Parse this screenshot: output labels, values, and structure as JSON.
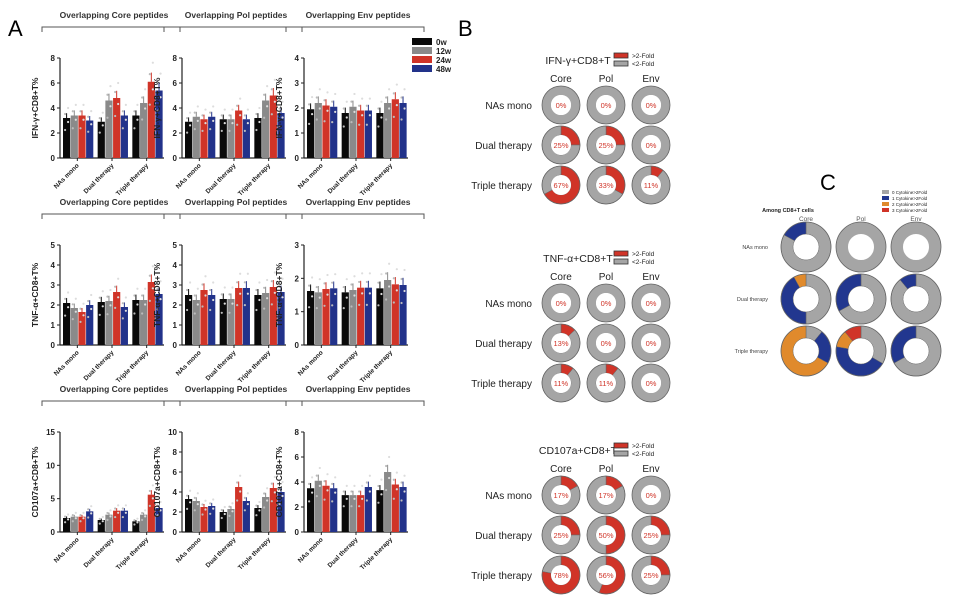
{
  "panel_labels": {
    "A": "A",
    "B": "B",
    "C": "C"
  },
  "colors": {
    "w0": "#0a0a0a",
    "w12": "#8a8a8a",
    "w24": "#d03428",
    "w48": "#22328a",
    "gt2": "#d03428",
    "lt2": "#a5a5a5",
    "c0": "#a5a5a5",
    "c1": "#22378f",
    "c2": "#e08a2c",
    "c3": "#d03428"
  },
  "legend_A": [
    {
      "label": "0w",
      "color": "#0a0a0a"
    },
    {
      "label": "12w",
      "color": "#8a8a8a"
    },
    {
      "label": "24w",
      "color": "#d03428"
    },
    {
      "label": "48w",
      "color": "#22328a"
    }
  ],
  "chart_data": [
    {
      "type": "bar",
      "panel": "A",
      "title": "Overlapping Core peptides",
      "ylabel": "IFN-γ+CD8+T%",
      "ylim": [
        0,
        8
      ],
      "yticks": [
        0,
        2,
        4,
        6,
        8
      ],
      "categories": [
        "NAs mono",
        "Dual therapy",
        "Triple therapy"
      ],
      "series": [
        {
          "name": "0w",
          "values": [
            3.2,
            2.9,
            3.4
          ]
        },
        {
          "name": "12w",
          "values": [
            3.4,
            4.6,
            4.4
          ]
        },
        {
          "name": "24w",
          "values": [
            3.4,
            4.8,
            6.1
          ]
        },
        {
          "name": "48w",
          "values": [
            3.0,
            3.4,
            5.4
          ]
        }
      ]
    },
    {
      "type": "bar",
      "panel": "A",
      "title": "Overlapping Pol peptides",
      "ylabel": "IFN-γ+CD8+T%",
      "ylim": [
        0,
        8
      ],
      "yticks": [
        0,
        2,
        4,
        6,
        8
      ],
      "categories": [
        "NAs mono",
        "Dual therapy",
        "Triple therapy"
      ],
      "series": [
        {
          "name": "0w",
          "values": [
            2.9,
            3.1,
            3.2
          ]
        },
        {
          "name": "12w",
          "values": [
            3.3,
            3.1,
            4.6
          ]
        },
        {
          "name": "24w",
          "values": [
            3.1,
            3.8,
            5.0
          ]
        },
        {
          "name": "48w",
          "values": [
            3.3,
            3.1,
            3.6
          ]
        }
      ]
    },
    {
      "type": "bar",
      "panel": "A",
      "title": "Overlapping Env peptides",
      "ylabel": "IFN-γ+CD8+T%",
      "ylim": [
        0,
        4
      ],
      "yticks": [
        0,
        1,
        2,
        3,
        4
      ],
      "categories": [
        "NAs mono",
        "Dual therapy",
        "Triple therapy"
      ],
      "series": [
        {
          "name": "0w",
          "values": [
            1.95,
            1.8,
            1.8
          ]
        },
        {
          "name": "12w",
          "values": [
            2.2,
            2.05,
            2.2
          ]
        },
        {
          "name": "24w",
          "values": [
            2.1,
            1.9,
            2.35
          ]
        },
        {
          "name": "48w",
          "values": [
            2.05,
            1.9,
            2.2
          ]
        }
      ]
    },
    {
      "type": "bar",
      "panel": "A",
      "title": "Overlapping Core peptides",
      "ylabel": "TNF-α+CD8+T%",
      "ylim": [
        0,
        5
      ],
      "yticks": [
        0,
        1,
        2,
        3,
        4,
        5
      ],
      "categories": [
        "NAs mono",
        "Dual therapy",
        "Triple therapy"
      ],
      "series": [
        {
          "name": "0w",
          "values": [
            2.1,
            2.15,
            2.25
          ]
        },
        {
          "name": "12w",
          "values": [
            1.85,
            2.2,
            2.25
          ]
        },
        {
          "name": "24w",
          "values": [
            1.65,
            2.65,
            3.15
          ]
        },
        {
          "name": "48w",
          "values": [
            2.0,
            1.9,
            2.55
          ]
        }
      ]
    },
    {
      "type": "bar",
      "panel": "A",
      "title": "Overlapping Pol peptides",
      "ylabel": "TNF-α+CD8+T%",
      "ylim": [
        0,
        5
      ],
      "yticks": [
        0,
        1,
        2,
        3,
        4,
        5
      ],
      "categories": [
        "NAs mono",
        "Dual therapy",
        "Triple therapy"
      ],
      "series": [
        {
          "name": "0w",
          "values": [
            2.5,
            2.3,
            2.5
          ]
        },
        {
          "name": "12w",
          "values": [
            2.25,
            2.3,
            2.6
          ]
        },
        {
          "name": "24w",
          "values": [
            2.75,
            2.85,
            2.9
          ]
        },
        {
          "name": "48w",
          "values": [
            2.5,
            2.85,
            2.65
          ]
        }
      ]
    },
    {
      "type": "bar",
      "panel": "A",
      "title": "Overlapping Env peptides",
      "ylabel": "TNF-α+CD8+T%",
      "ylim": [
        0,
        3
      ],
      "yticks": [
        0,
        1,
        2,
        3
      ],
      "categories": [
        "NAs mono",
        "Dual therapy",
        "Triple therapy"
      ],
      "series": [
        {
          "name": "0w",
          "values": [
            1.62,
            1.58,
            1.7
          ]
        },
        {
          "name": "12w",
          "values": [
            1.58,
            1.65,
            1.95
          ]
        },
        {
          "name": "24w",
          "values": [
            1.68,
            1.72,
            1.82
          ]
        },
        {
          "name": "48w",
          "values": [
            1.7,
            1.72,
            1.8
          ]
        }
      ]
    },
    {
      "type": "bar",
      "panel": "A",
      "title": "Overlapping Core peptides",
      "ylabel": "CD107a+CD8+T%",
      "ylim": [
        0,
        15
      ],
      "yticks": [
        0,
        5,
        10,
        15
      ],
      "categories": [
        "NAs mono",
        "Dual therapy",
        "Triple therapy"
      ],
      "series": [
        {
          "name": "0w",
          "values": [
            2.1,
            1.8,
            1.6
          ]
        },
        {
          "name": "12w",
          "values": [
            2.3,
            2.6,
            2.6
          ]
        },
        {
          "name": "24w",
          "values": [
            2.3,
            3.2,
            5.6
          ]
        },
        {
          "name": "48w",
          "values": [
            3.1,
            3.2,
            3.6
          ]
        }
      ]
    },
    {
      "type": "bar",
      "panel": "A",
      "title": "Overlapping Pol peptides",
      "ylabel": "CD107a+CD8+T%",
      "ylim": [
        0,
        10
      ],
      "yticks": [
        0,
        2,
        4,
        6,
        8,
        10
      ],
      "categories": [
        "NAs mono",
        "Dual therapy",
        "Triple therapy"
      ],
      "series": [
        {
          "name": "0w",
          "values": [
            3.3,
            2.0,
            2.4
          ]
        },
        {
          "name": "12w",
          "values": [
            3.1,
            2.3,
            3.5
          ]
        },
        {
          "name": "24w",
          "values": [
            2.5,
            4.5,
            4.4
          ]
        },
        {
          "name": "48w",
          "values": [
            2.6,
            3.1,
            4.0
          ]
        }
      ]
    },
    {
      "type": "bar",
      "panel": "A",
      "title": "Overlapping Env peptides",
      "ylabel": "CD107a+CD8+T%",
      "ylim": [
        0,
        8
      ],
      "yticks": [
        0,
        2,
        4,
        6,
        8
      ],
      "categories": [
        "NAs mono",
        "Dual therapy",
        "Triple therapy"
      ],
      "series": [
        {
          "name": "0w",
          "values": [
            3.5,
            2.95,
            3.35
          ]
        },
        {
          "name": "12w",
          "values": [
            4.1,
            2.95,
            4.8
          ]
        },
        {
          "name": "24w",
          "values": [
            3.7,
            2.95,
            3.8
          ]
        },
        {
          "name": "48w",
          "values": [
            3.5,
            3.6,
            3.6
          ]
        }
      ]
    },
    {
      "type": "pie",
      "panel": "B",
      "title": "IFN-γ+CD8+T",
      "columns": [
        "Core",
        "Pol",
        "Env"
      ],
      "rows": [
        "NAs mono",
        "Dual therapy",
        "Triple therapy"
      ],
      "legend": [
        ">2-Fold",
        "<2-Fold"
      ],
      "percent_gt2fold": [
        [
          0,
          0,
          0
        ],
        [
          25,
          25,
          0
        ],
        [
          67,
          33,
          11
        ]
      ]
    },
    {
      "type": "pie",
      "panel": "B",
      "title": "TNF-α+CD8+T",
      "columns": [
        "Core",
        "Pol",
        "Env"
      ],
      "rows": [
        "NAs mono",
        "Dual therapy",
        "Triple therapy"
      ],
      "legend": [
        ">2-Fold",
        "<2-Fold"
      ],
      "percent_gt2fold": [
        [
          0,
          0,
          0
        ],
        [
          13,
          0,
          0
        ],
        [
          11,
          11,
          0
        ]
      ]
    },
    {
      "type": "pie",
      "panel": "B",
      "title": "CD107a+CD8+T",
      "columns": [
        "Core",
        "Pol",
        "Env"
      ],
      "rows": [
        "NAs mono",
        "Dual therapy",
        "Triple therapy"
      ],
      "legend": [
        ">2-Fold",
        "<2-Fold"
      ],
      "percent_gt2fold": [
        [
          17,
          17,
          0
        ],
        [
          25,
          50,
          25
        ],
        [
          78,
          56,
          25
        ]
      ]
    },
    {
      "type": "pie",
      "panel": "C",
      "title": "Among CD8+T cells",
      "columns": [
        "Core",
        "Pol",
        "Env"
      ],
      "rows": [
        "NAs mono",
        "Dual therapy",
        "Triple therapy"
      ],
      "legend": [
        "0 Cytokine>2Fold",
        "1 Cytokine>2Fold",
        "2 Cytokine>2Fold",
        "3 Cytokine>2Fold"
      ],
      "fractions": [
        [
          [
            83,
            17,
            0,
            0
          ],
          [
            100,
            0,
            0,
            0
          ],
          [
            100,
            0,
            0,
            0
          ]
        ],
        [
          [
            50,
            42,
            8,
            0
          ],
          [
            67,
            33,
            0,
            0
          ],
          [
            89,
            11,
            0,
            0
          ]
        ],
        [
          [
            11,
            22,
            67,
            0
          ],
          [
            33,
            44,
            11,
            11
          ],
          [
            67,
            33,
            0,
            0
          ]
        ]
      ],
      "order_note": "fractions per donut: [0,1,2,3 cytokine]"
    }
  ],
  "bar_x_labels": [
    "NAs mono",
    "Dual therapy",
    "Triple therapy"
  ]
}
